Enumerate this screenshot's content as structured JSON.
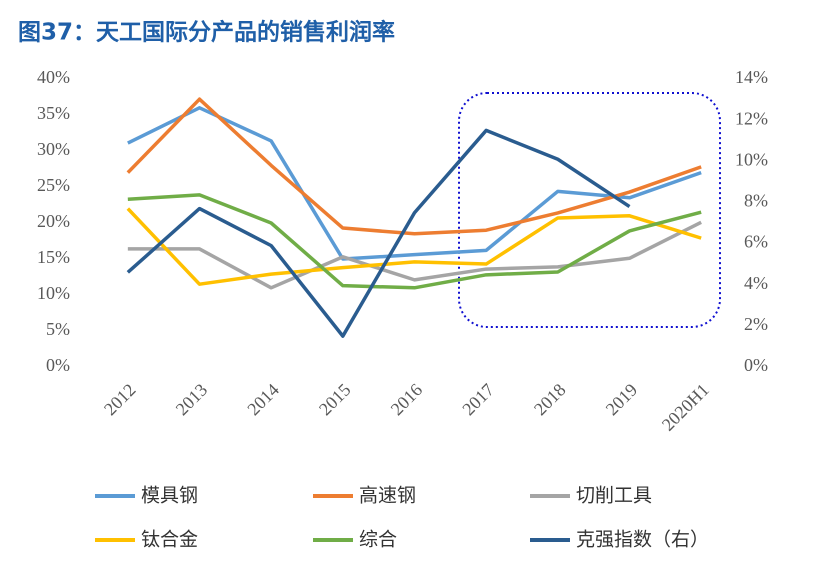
{
  "chart_data": {
    "type": "line",
    "title": "图37：天工国际分产品的销售利润率",
    "categories": [
      "2012",
      "2013",
      "2014",
      "2015",
      "2016",
      "2017",
      "2018",
      "2019",
      "2020H1"
    ],
    "ylim": [
      0,
      40
    ],
    "yticks": [
      {
        "value": 0,
        "label": "0%"
      },
      {
        "value": 5,
        "label": "5%"
      },
      {
        "value": 10,
        "label": "10%"
      },
      {
        "value": 15,
        "label": "15%"
      },
      {
        "value": 20,
        "label": "20%"
      },
      {
        "value": 25,
        "label": "25%"
      },
      {
        "value": 30,
        "label": "30%"
      },
      {
        "value": 35,
        "label": "35%"
      },
      {
        "value": 40,
        "label": "40%"
      }
    ],
    "y2lim": [
      0,
      14
    ],
    "y2ticks": [
      {
        "value": 0,
        "label": "0%"
      },
      {
        "value": 2,
        "label": "2%"
      },
      {
        "value": 4,
        "label": "4%"
      },
      {
        "value": 6,
        "label": "6%"
      },
      {
        "value": 8,
        "label": "8%"
      },
      {
        "value": 10,
        "label": "10%"
      },
      {
        "value": 12,
        "label": "12%"
      },
      {
        "value": 14,
        "label": "14%"
      }
    ],
    "grid": false,
    "series": [
      {
        "name": "模具钢",
        "color": "#5B9BD5",
        "values": [
          31.1,
          36,
          31.4,
          15,
          15.6,
          16.2,
          24.4,
          23.5,
          27
        ]
      },
      {
        "name": "高速钢",
        "color": "#ED7D31",
        "values": [
          27,
          37.2,
          28,
          19.3,
          18.5,
          19,
          21.4,
          24.3,
          27.8
        ]
      },
      {
        "name": "切削工具",
        "color": "#A5A5A5",
        "values": [
          16.4,
          16.4,
          11,
          15.3,
          12.1,
          13.6,
          13.9,
          15.1,
          20.1
        ]
      },
      {
        "name": "钛合金",
        "color": "#FFC000",
        "values": [
          22,
          11.5,
          12.9,
          13.8,
          14.6,
          14.3,
          20.7,
          21,
          17.9
        ]
      },
      {
        "name": "综合",
        "color": "#70AD47",
        "values": [
          23.3,
          23.9,
          20,
          11.3,
          11,
          12.8,
          13.2,
          18.9,
          21.5
        ]
      },
      {
        "name": "克强指数（右）",
        "color": "#2A5C8F",
        "axis": "y2",
        "values": [
          4.6,
          7.7,
          5.9,
          1.5,
          7.5,
          11.5,
          10.1,
          7.8,
          null
        ]
      }
    ]
  }
}
